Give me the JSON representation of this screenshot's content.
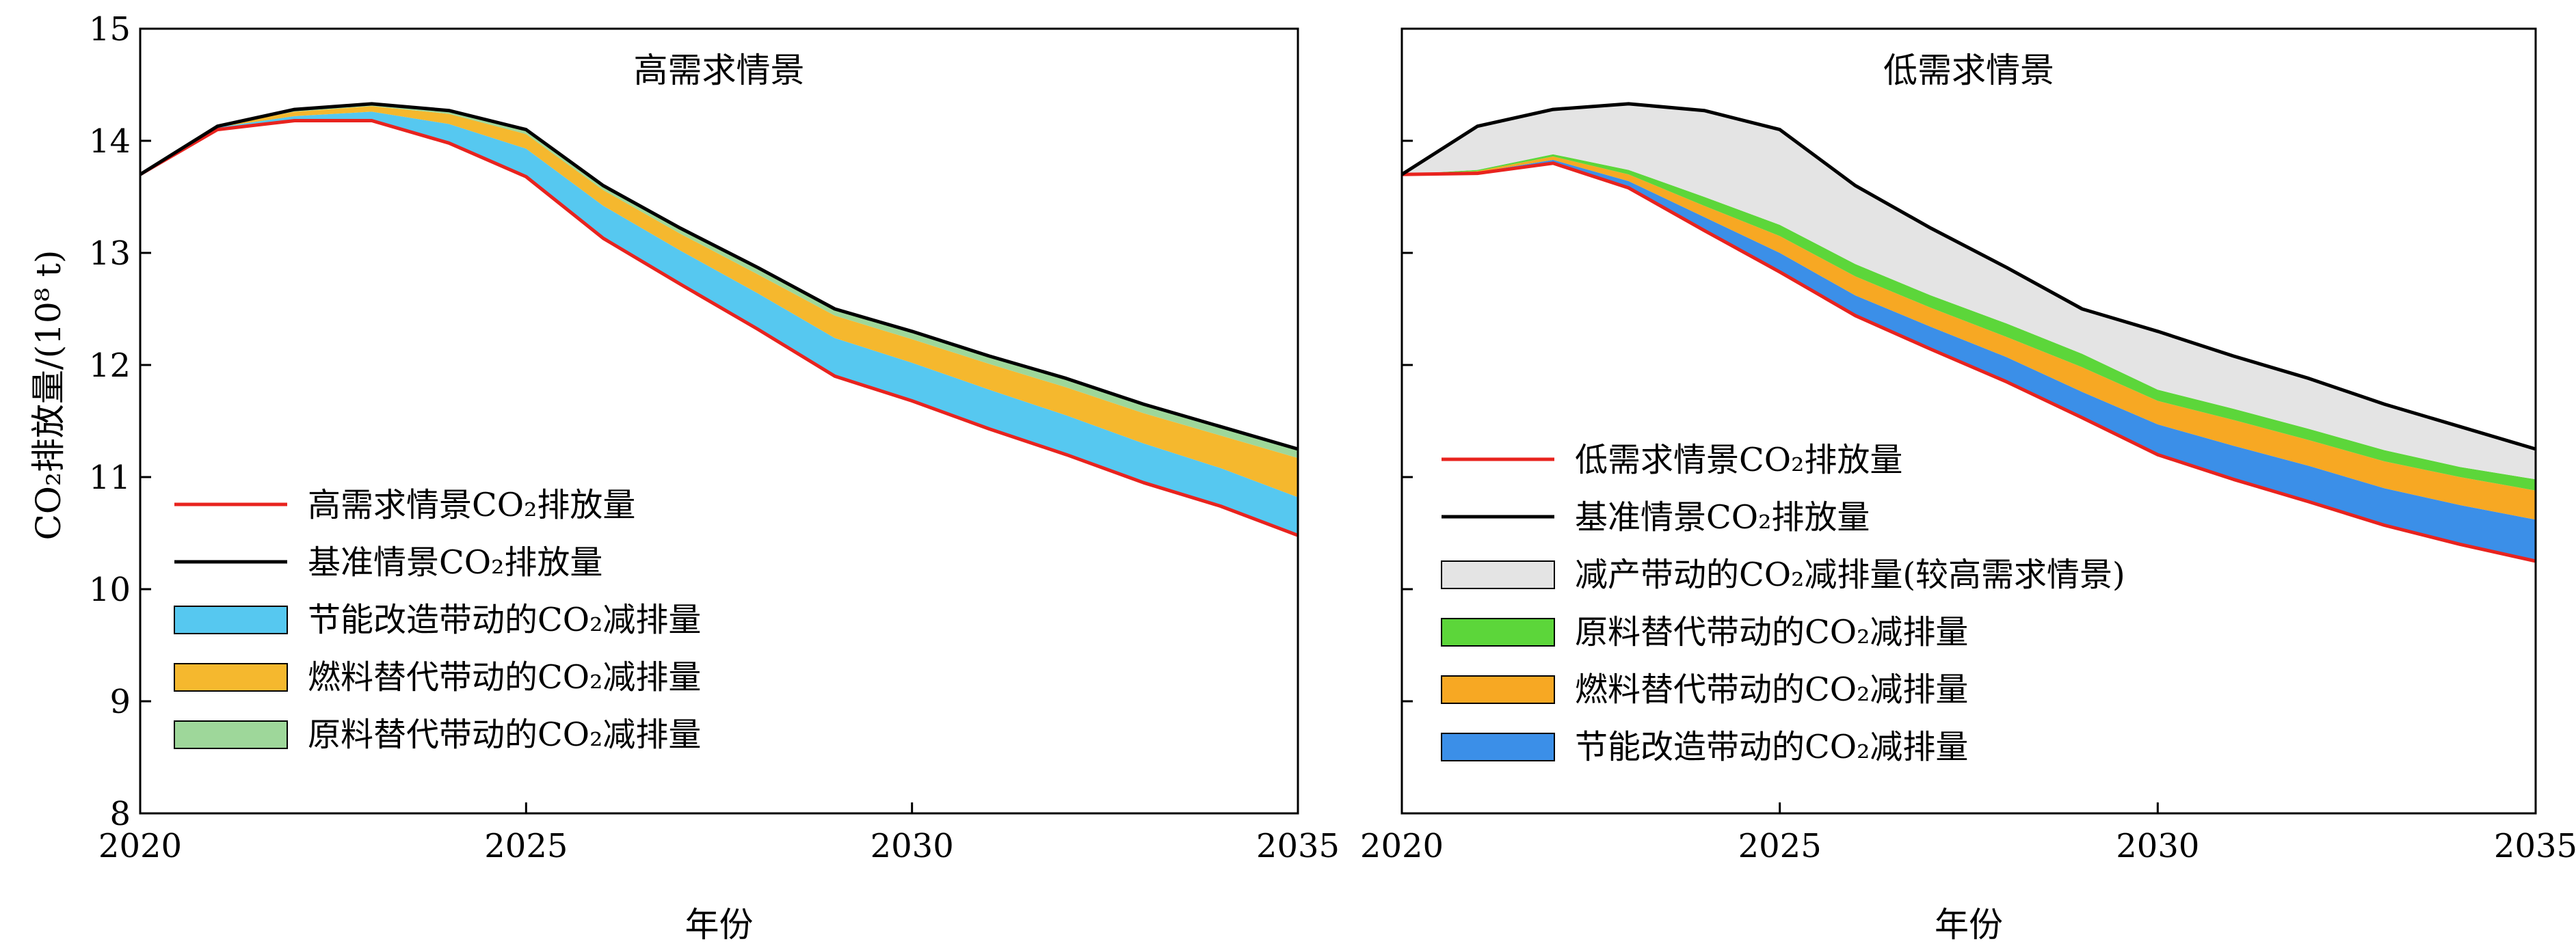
{
  "y_axis_label": "CO₂排放量/(10⁸ t)",
  "colors": {
    "baseline_line": "#000000",
    "scenario_line": "#e8231e",
    "high_energy_saving": "#56c8f0",
    "high_fuel": "#f5b82e",
    "high_material": "#9ed79a",
    "low_reduction": "#e4e4e4",
    "low_material": "#5cd63a",
    "low_fuel": "#f7a823",
    "low_energy_saving": "#3b8fe8"
  },
  "chart_data": [
    {
      "type": "area",
      "title": "高需求情景",
      "xlabel": "年份",
      "ylabel": "CO₂排放量/(10⁸ t)",
      "xlim": [
        2020,
        2035
      ],
      "ylim": [
        8,
        15
      ],
      "x_ticks": [
        2020,
        2025,
        2030,
        2035
      ],
      "y_ticks": [
        8,
        9,
        10,
        11,
        12,
        13,
        14,
        15
      ],
      "grid": false,
      "legend_position": "bottom-left",
      "x": [
        2020,
        2021,
        2022,
        2023,
        2024,
        2025,
        2026,
        2027,
        2028,
        2029,
        2030,
        2031,
        2032,
        2033,
        2034,
        2035
      ],
      "lines": [
        {
          "name": "高需求情景CO₂排放量",
          "color": "#e8231e",
          "values": [
            13.7,
            14.1,
            14.18,
            14.18,
            13.98,
            13.68,
            13.13,
            12.72,
            12.32,
            11.9,
            11.68,
            11.43,
            11.2,
            10.95,
            10.74,
            10.48
          ]
        },
        {
          "name": "基准情景CO₂排放量",
          "color": "#000000",
          "values": [
            13.7,
            14.13,
            14.28,
            14.33,
            14.27,
            14.1,
            13.6,
            13.22,
            12.87,
            12.5,
            12.3,
            12.08,
            11.88,
            11.65,
            11.45,
            11.25
          ]
        }
      ],
      "bands": [
        {
          "name": "节能改造带动的CO₂减排量",
          "color": "#56c8f0",
          "lower": [
            13.7,
            14.1,
            14.18,
            14.18,
            13.98,
            13.68,
            13.13,
            12.72,
            12.32,
            11.9,
            11.68,
            11.43,
            11.2,
            10.95,
            10.74,
            10.48
          ],
          "upper": [
            13.7,
            14.12,
            14.22,
            14.26,
            14.15,
            13.93,
            13.42,
            13.02,
            12.64,
            12.24,
            12.02,
            11.78,
            11.55,
            11.3,
            11.08,
            10.82
          ]
        },
        {
          "name": "燃料替代带动的CO₂减排量",
          "color": "#f5b82e",
          "lower": [
            13.7,
            14.12,
            14.22,
            14.26,
            14.15,
            13.93,
            13.42,
            13.02,
            12.64,
            12.24,
            12.02,
            11.78,
            11.55,
            11.3,
            11.08,
            10.82
          ],
          "upper": [
            13.7,
            14.13,
            14.26,
            14.31,
            14.24,
            14.06,
            13.56,
            13.17,
            12.81,
            12.44,
            12.23,
            12.01,
            11.8,
            11.57,
            11.37,
            11.17
          ]
        },
        {
          "name": "原料替代带动的CO₂减排量",
          "color": "#9ed79a",
          "lower": [
            13.7,
            14.13,
            14.26,
            14.31,
            14.24,
            14.06,
            13.56,
            13.17,
            12.81,
            12.44,
            12.23,
            12.01,
            11.8,
            11.57,
            11.37,
            11.17
          ],
          "upper": [
            13.7,
            14.13,
            14.28,
            14.33,
            14.27,
            14.1,
            13.6,
            13.22,
            12.87,
            12.5,
            12.3,
            12.08,
            11.88,
            11.65,
            11.45,
            11.25
          ]
        }
      ]
    },
    {
      "type": "area",
      "title": "低需求情景",
      "xlabel": "年份",
      "ylabel": "",
      "xlim": [
        2020,
        2035
      ],
      "ylim": [
        8,
        15
      ],
      "x_ticks": [
        2020,
        2025,
        2030,
        2035
      ],
      "y_ticks": [
        8,
        9,
        10,
        11,
        12,
        13,
        14,
        15
      ],
      "grid": false,
      "legend_position": "bottom-left",
      "x": [
        2020,
        2021,
        2022,
        2023,
        2024,
        2025,
        2026,
        2027,
        2028,
        2029,
        2030,
        2031,
        2032,
        2033,
        2034,
        2035
      ],
      "lines": [
        {
          "name": "低需求情景CO₂排放量",
          "color": "#e8231e",
          "values": [
            13.7,
            13.71,
            13.8,
            13.58,
            13.2,
            12.83,
            12.44,
            12.14,
            11.85,
            11.53,
            11.2,
            10.98,
            10.78,
            10.57,
            10.4,
            10.25
          ]
        },
        {
          "name": "基准情景CO₂排放量",
          "color": "#000000",
          "values": [
            13.7,
            14.13,
            14.28,
            14.33,
            14.27,
            14.1,
            13.6,
            13.22,
            12.87,
            12.5,
            12.3,
            12.08,
            11.88,
            11.65,
            11.45,
            11.25
          ]
        }
      ],
      "bands": [
        {
          "name": "节能改造带动的CO₂减排量",
          "color": "#3b8fe8",
          "lower": [
            13.7,
            13.71,
            13.8,
            13.58,
            13.2,
            12.83,
            12.44,
            12.14,
            11.85,
            11.53,
            11.2,
            10.98,
            10.78,
            10.57,
            10.4,
            10.25
          ],
          "upper": [
            13.7,
            13.72,
            13.83,
            13.64,
            13.32,
            13.0,
            12.62,
            12.34,
            12.07,
            11.76,
            11.47,
            11.28,
            11.1,
            10.9,
            10.75,
            10.62
          ]
        },
        {
          "name": "燃料替代带动的CO₂减排量",
          "color": "#f7a823",
          "lower": [
            13.7,
            13.72,
            13.83,
            13.64,
            13.32,
            13.0,
            12.62,
            12.34,
            12.07,
            11.76,
            11.47,
            11.28,
            11.1,
            10.9,
            10.75,
            10.62
          ],
          "upper": [
            13.7,
            13.73,
            13.86,
            13.7,
            13.42,
            13.15,
            12.79,
            12.51,
            12.25,
            11.98,
            11.68,
            11.51,
            11.33,
            11.14,
            11.0,
            10.88
          ]
        },
        {
          "name": "原料替代带动的CO₂减排量",
          "color": "#5cd63a",
          "lower": [
            13.7,
            13.73,
            13.86,
            13.7,
            13.42,
            13.15,
            12.79,
            12.51,
            12.25,
            11.98,
            11.68,
            11.51,
            11.33,
            11.14,
            11.0,
            10.88
          ],
          "upper": [
            13.7,
            13.74,
            13.88,
            13.74,
            13.5,
            13.25,
            12.9,
            12.62,
            12.37,
            12.1,
            11.78,
            11.61,
            11.43,
            11.24,
            11.09,
            10.98
          ]
        },
        {
          "name": "减产带动的CO₂减排量(较高需求情景)",
          "color": "#e4e4e4",
          "lower": [
            13.7,
            13.74,
            13.88,
            13.74,
            13.5,
            13.25,
            12.9,
            12.62,
            12.37,
            12.1,
            11.78,
            11.61,
            11.43,
            11.24,
            11.09,
            10.98
          ],
          "upper": [
            13.7,
            14.13,
            14.28,
            14.33,
            14.27,
            14.1,
            13.6,
            13.22,
            12.87,
            12.5,
            12.3,
            12.08,
            11.88,
            11.65,
            11.45,
            11.25
          ]
        }
      ],
      "legend_order": [
        "低需求情景CO₂排放量",
        "基准情景CO₂排放量",
        "减产带动的CO₂减排量(较高需求情景)",
        "原料替代带动的CO₂减排量",
        "燃料替代带动的CO₂减排量",
        "节能改造带动的CO₂减排量"
      ]
    }
  ]
}
